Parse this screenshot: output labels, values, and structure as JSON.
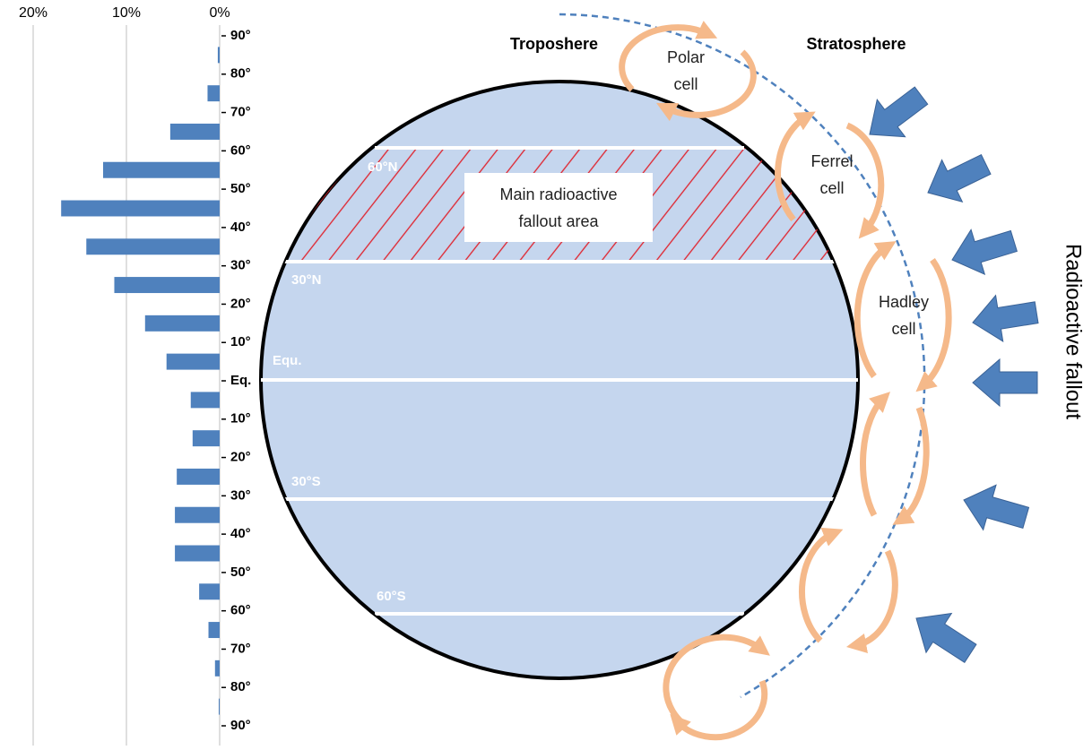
{
  "chart_data": {
    "type": "histogram",
    "orientation": "horizontal",
    "color": "#4f81bd",
    "bins": [
      90,
      80,
      70,
      60,
      50,
      40,
      30,
      20,
      10,
      0,
      -10,
      -20,
      -30,
      -40,
      -50,
      -60,
      -70,
      -80,
      -90
    ],
    "values": [
      0.2,
      1.3,
      5.3,
      12.5,
      17,
      14.3,
      11.3,
      8,
      5.7,
      3.1,
      2.9,
      4.6,
      4.8,
      4.8,
      2.2,
      1.2,
      0.5,
      0.1
    ],
    "xlim": [
      20,
      0
    ],
    "xticks": [
      {
        "value": 20,
        "label": "20%"
      },
      {
        "value": 10,
        "label": "10%"
      },
      {
        "value": 0,
        "label": "0%"
      }
    ],
    "ylim": [
      -90,
      90
    ],
    "yticks": [
      {
        "value": 90,
        "label": "90°"
      },
      {
        "value": 80,
        "label": "80°"
      },
      {
        "value": 70,
        "label": "70°"
      },
      {
        "value": 60,
        "label": "60°"
      },
      {
        "value": 50,
        "label": "50°"
      },
      {
        "value": 40,
        "label": "40°"
      },
      {
        "value": 30,
        "label": "30°"
      },
      {
        "value": 20,
        "label": "20°"
      },
      {
        "value": 10,
        "label": "10°"
      },
      {
        "value": 0,
        "label": "Eq."
      },
      {
        "value": -10,
        "label": "10°"
      },
      {
        "value": -20,
        "label": "20°"
      },
      {
        "value": -30,
        "label": "30°"
      },
      {
        "value": -40,
        "label": "40°"
      },
      {
        "value": -50,
        "label": "50°"
      },
      {
        "value": -60,
        "label": "60°"
      },
      {
        "value": -70,
        "label": "70°"
      },
      {
        "value": -80,
        "label": "80°"
      },
      {
        "value": -90,
        "label": "90°"
      }
    ],
    "grid": true
  },
  "diagram": {
    "troposphere": "Troposhere",
    "stratosphere": "Stratosphere",
    "polar_cell": [
      "Polar",
      "cell"
    ],
    "ferrel_cell": [
      "Ferrel",
      "cell"
    ],
    "hadley_cell": [
      "Hadley",
      "cell"
    ],
    "main_area": [
      "Main radioactive",
      "fallout area"
    ],
    "zones": [
      "60°N",
      "30°N",
      "Equ.",
      "30°S",
      "60°S"
    ],
    "side_label": "Radioactive fallout"
  }
}
